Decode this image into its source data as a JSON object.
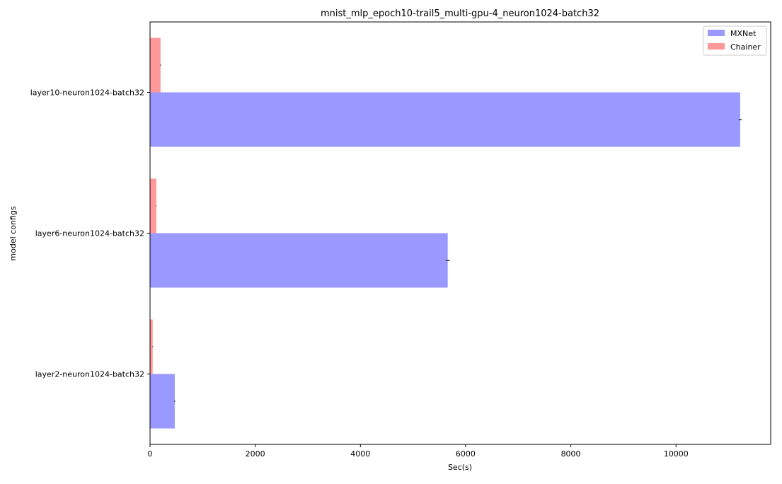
{
  "chart_data": {
    "type": "bar",
    "orientation": "horizontal",
    "title": "mnist_mlp_epoch10-trail5_multi-gpu-4_neuron1024-batch32",
    "xlabel": "Sec(s)",
    "ylabel": "model configs",
    "categories": [
      "layer2-neuron1024-batch32",
      "layer6-neuron1024-batch32",
      "layer10-neuron1024-batch32"
    ],
    "series": [
      {
        "name": "MXNet",
        "color": "#9999ff",
        "values": [
          470,
          5660,
          11220
        ],
        "errors": [
          10,
          40,
          30
        ]
      },
      {
        "name": "Chainer",
        "color": "#ff9999",
        "values": [
          50,
          120,
          200
        ],
        "errors": [
          5,
          5,
          8
        ]
      }
    ],
    "xlim": [
      0,
      11800
    ],
    "xticks": [
      0,
      2000,
      4000,
      6000,
      8000,
      10000
    ],
    "grid": false,
    "legend_position": "top-right"
  }
}
